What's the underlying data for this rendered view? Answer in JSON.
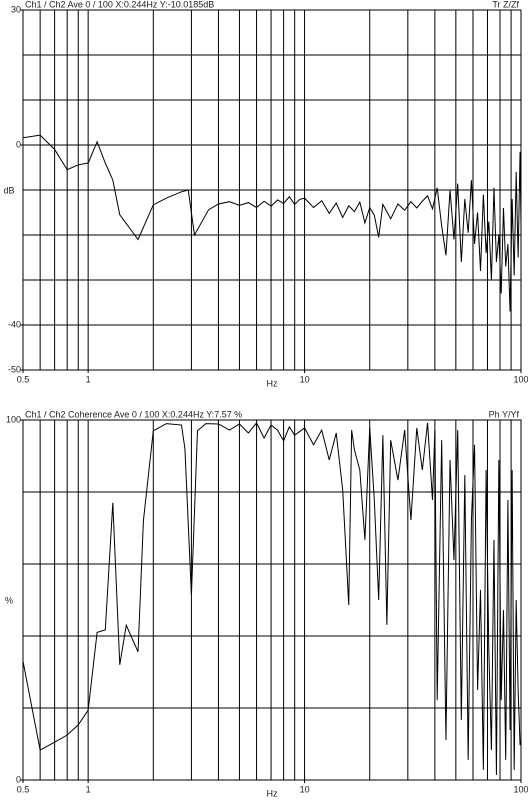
{
  "chart_data": [
    {
      "type": "line",
      "title": "Ch1 / Ch2  Ave 0 / 100  X:0.244Hz  Y:-10.0185dB",
      "subtitle": "Tr Z/Zf",
      "ylabel": "dB",
      "xlabel": "Hz",
      "xscale": "log",
      "color": "#000000",
      "xlim": [
        0.5,
        100
      ],
      "ylim": [
        -50,
        30
      ],
      "xticks": [
        0.5,
        1,
        10,
        100
      ],
      "yticks": [
        30,
        0,
        -40,
        -50
      ],
      "xgrid": [
        0.6,
        0.7,
        0.8,
        0.9,
        1,
        2,
        3,
        4,
        5,
        6,
        7,
        8,
        9,
        10,
        20,
        30,
        40,
        50,
        60,
        70,
        80,
        90
      ],
      "ygrid": [
        20,
        10,
        0,
        -10,
        -20,
        -30,
        -40
      ],
      "x": [
        0.5,
        0.6,
        0.7,
        0.8,
        0.9,
        1.0,
        1.1,
        1.2,
        1.3,
        1.4,
        1.7,
        2.0,
        2.3,
        2.7,
        2.9,
        3.1,
        3.6,
        4.0,
        4.5,
        5,
        5.5,
        6,
        6.5,
        7,
        7.5,
        8,
        8.5,
        9,
        9.5,
        10,
        11,
        12,
        13,
        14,
        15,
        16,
        17,
        18,
        19,
        20,
        21,
        22,
        23,
        25,
        27,
        29,
        31,
        33,
        35,
        37,
        39,
        41,
        43,
        45,
        47,
        49,
        51,
        53,
        55,
        57,
        59,
        61,
        63,
        65,
        67,
        69,
        71,
        73,
        75,
        77,
        79,
        81,
        83,
        85,
        87,
        89,
        91,
        93,
        95,
        97,
        99,
        100
      ],
      "values": [
        1.6,
        2.2,
        -1,
        -5.5,
        -4.4,
        -4,
        0.7,
        -4,
        -7.8,
        -15.5,
        -21,
        -13.3,
        -11.8,
        -10.4,
        -10,
        -20,
        -14.4,
        -13.1,
        -12.6,
        -13.4,
        -12.8,
        -13.9,
        -12.5,
        -13.6,
        -12.2,
        -13,
        -11.5,
        -13.2,
        -12.1,
        -11.8,
        -13.9,
        -12.4,
        -15.2,
        -12.9,
        -16.1,
        -13.5,
        -14.8,
        -12.7,
        -17.3,
        -13.9,
        -15.6,
        -20.5,
        -13.2,
        -16.4,
        -13.1,
        -14.5,
        -12.6,
        -14,
        -12.5,
        -11.3,
        -14.2,
        -9.5,
        -18,
        -24.5,
        -10,
        -21,
        -8.6,
        -26,
        -12,
        -19.5,
        -7.8,
        -22,
        -15,
        -28,
        -11,
        -24,
        -17,
        -30,
        -9.5,
        -26,
        -20,
        -33,
        -14,
        -27,
        -22,
        -37,
        -12,
        -29,
        -6,
        -25,
        -1.5,
        -18
      ]
    },
    {
      "type": "line",
      "title": "Ch1 / Ch2  Coherence Ave 0 / 100  X:0.244Hz  Y:7.57 %",
      "subtitle": "Ph Y/Yf",
      "ylabel": "%",
      "xlabel": "Hz",
      "xscale": "log",
      "color": "#000000",
      "xlim": [
        0.5,
        100
      ],
      "ylim": [
        0,
        100
      ],
      "xticks": [
        0.5,
        1,
        10,
        100
      ],
      "yticks": [
        100,
        0
      ],
      "xgrid": [
        0.6,
        0.7,
        0.8,
        0.9,
        1,
        2,
        3,
        4,
        5,
        6,
        7,
        8,
        9,
        10,
        20,
        30,
        40,
        50,
        60,
        70,
        80,
        90
      ],
      "ygrid": [
        80,
        60,
        40,
        20
      ],
      "x": [
        0.5,
        0.6,
        0.7,
        0.8,
        0.9,
        1.0,
        1.1,
        1.2,
        1.3,
        1.4,
        1.5,
        1.7,
        1.8,
        2.0,
        2.3,
        2.7,
        2.8,
        3.0,
        3.2,
        3.5,
        4,
        4.5,
        5,
        5.5,
        6,
        6.5,
        7,
        7.5,
        8,
        8.5,
        9,
        10,
        11,
        12,
        13,
        14,
        15,
        16,
        16.5,
        17,
        18,
        19,
        20,
        21,
        22,
        23,
        24,
        25,
        27,
        29,
        31,
        33,
        35,
        37,
        39,
        40,
        41,
        43,
        45,
        47,
        49,
        51,
        53,
        55,
        57,
        59,
        61,
        63,
        65,
        67,
        69,
        71,
        73,
        75,
        77,
        79,
        81,
        83,
        85,
        87,
        89,
        91,
        93,
        95,
        97,
        99,
        100
      ],
      "values": [
        33,
        8.3,
        10.5,
        12.5,
        15.3,
        19.4,
        41,
        41.7,
        77,
        32,
        43,
        35.6,
        72,
        97,
        99,
        98.6,
        92,
        51.4,
        97,
        99,
        98.9,
        97.2,
        98.9,
        96.4,
        99.2,
        95,
        98.6,
        97.2,
        94.2,
        98.1,
        95.8,
        97.8,
        93.1,
        97.2,
        88.9,
        96.4,
        80.6,
        48.6,
        97.2,
        91.7,
        86.1,
        66.7,
        97.8,
        77.8,
        50,
        95.8,
        43.1,
        94.4,
        83.3,
        97.2,
        72.2,
        97.8,
        86.1,
        99.2,
        77.8,
        97.2,
        22.2,
        94.4,
        11.1,
        88.9,
        61.1,
        97.2,
        16.7,
        84.7,
        5.6,
        72.2,
        93.1,
        25,
        52.8,
        2.8,
        86.1,
        36.1,
        8.3,
        66.7,
        1.4,
        88.9,
        22.2,
        47.2,
        5.6,
        77.8,
        13.9,
        86.1,
        2.8,
        50,
        25,
        9.7,
        11.1
      ]
    }
  ]
}
